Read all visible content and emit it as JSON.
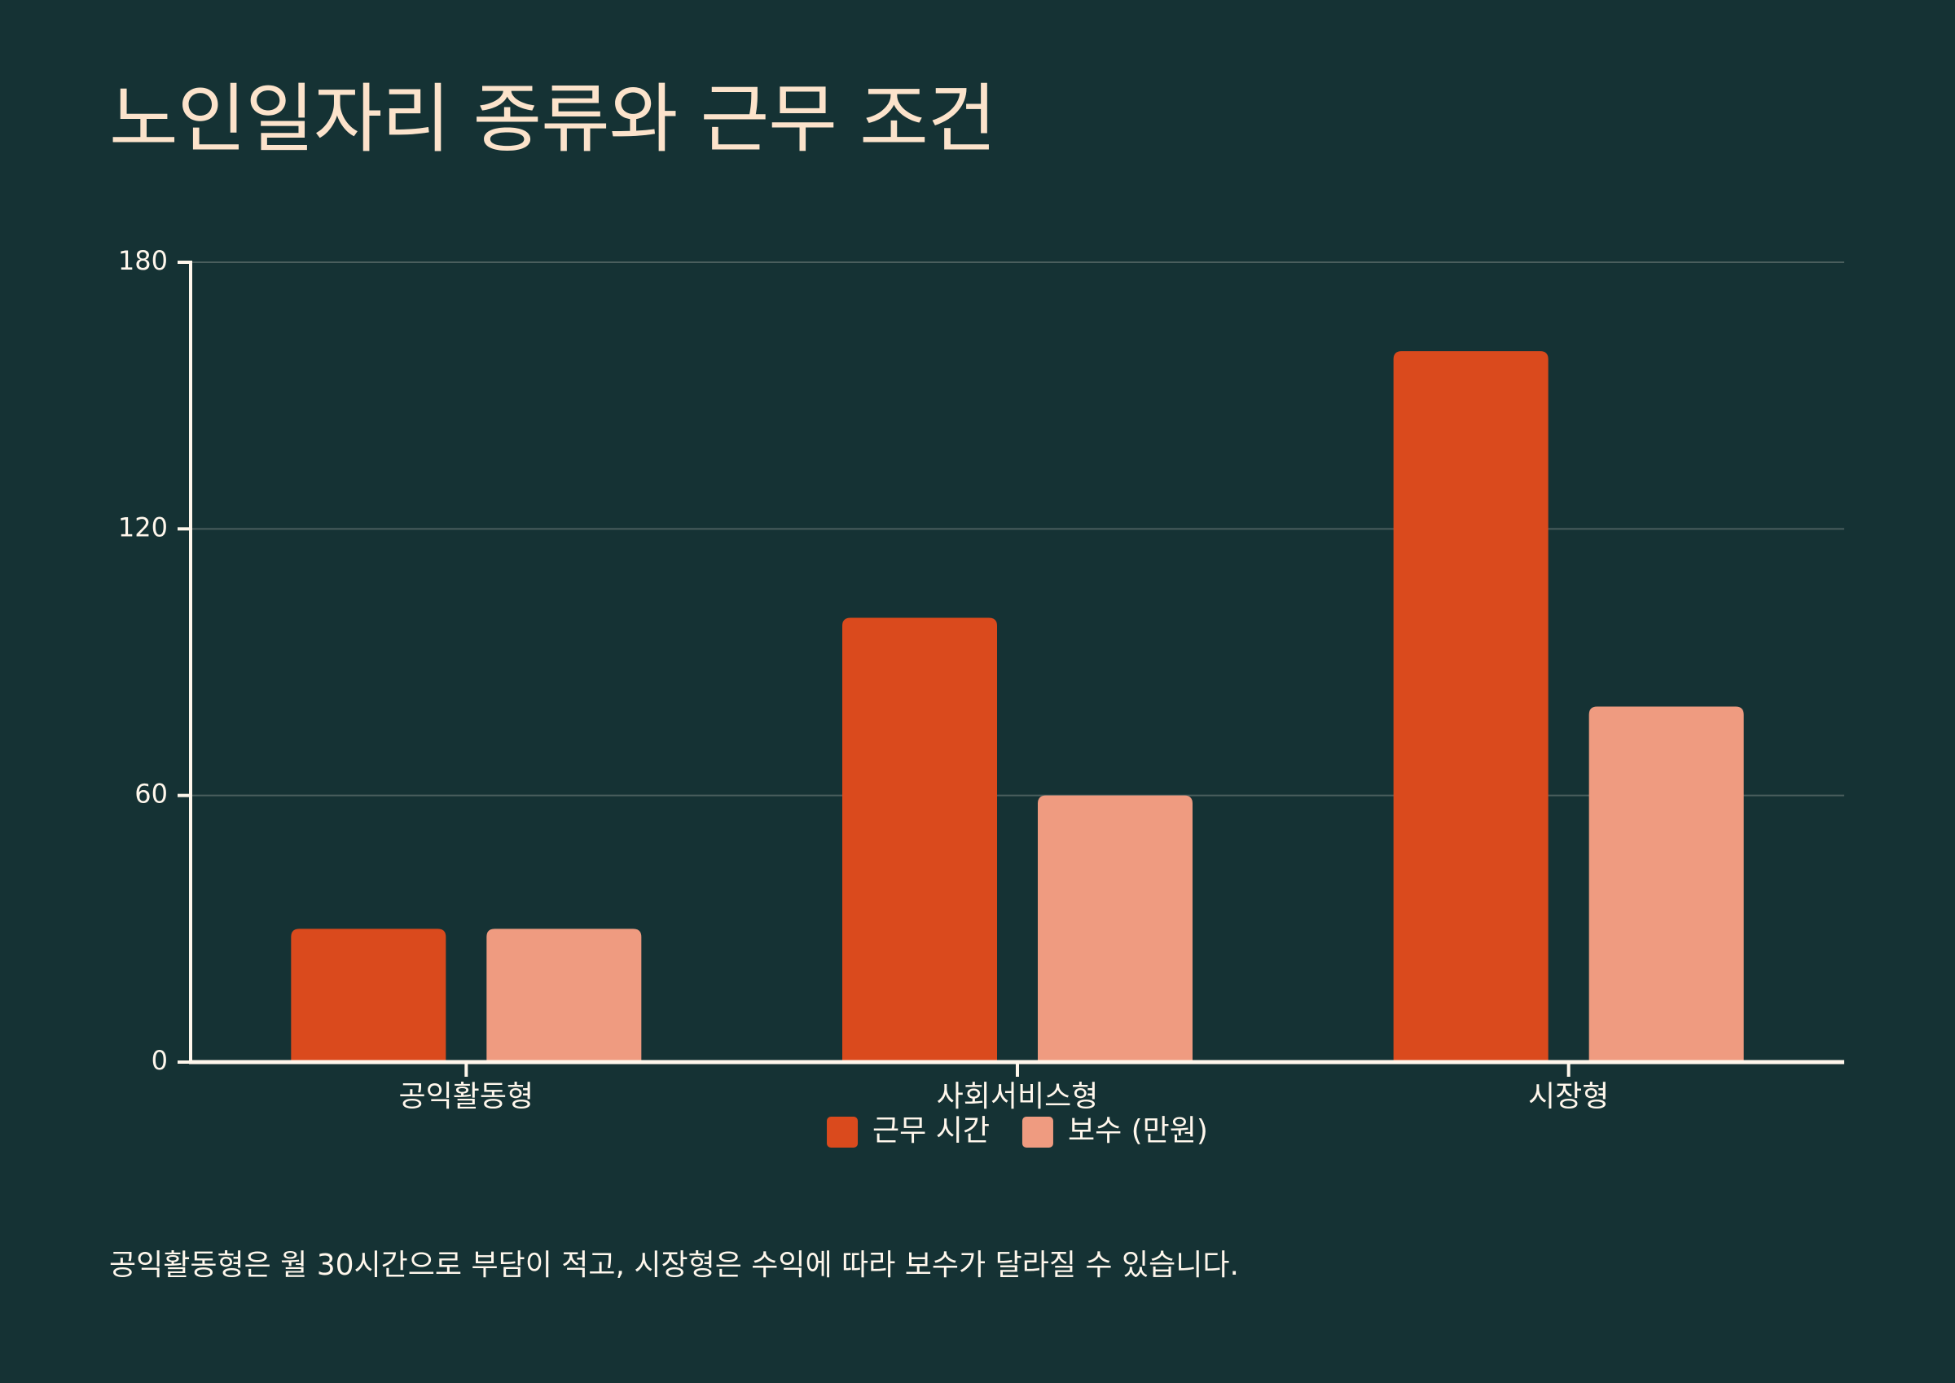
{
  "chart_data": {
    "type": "bar",
    "title": "노인일자리 종류와 근무 조건",
    "xlabel": "",
    "ylabel": "",
    "categories": [
      "공익활동형",
      "사회서비스형",
      "시장형"
    ],
    "series": [
      {
        "name": "근무 시간",
        "values": [
          30,
          100,
          160
        ],
        "color": "#DA4A1D"
      },
      {
        "name": "보수 (만원)",
        "values": [
          30,
          60,
          80
        ],
        "color": "#EF9B80"
      }
    ],
    "ylim": [
      0,
      180
    ],
    "yticks": [
      0,
      60,
      120,
      180
    ],
    "yticks_labels": [
      "0",
      "60",
      "120",
      "180"
    ],
    "grid": true,
    "legend_position": "bottom-center"
  },
  "footnote": "공익활동형은 월 30시간으로 부담이 적고, 시장형은 수익에 따라 보수가 달라질 수 있습니다.",
  "colors": {
    "background": "#153234",
    "text": "#FCE3CB",
    "axis": "#FFF7EC",
    "grid": "#4A5E5D"
  }
}
